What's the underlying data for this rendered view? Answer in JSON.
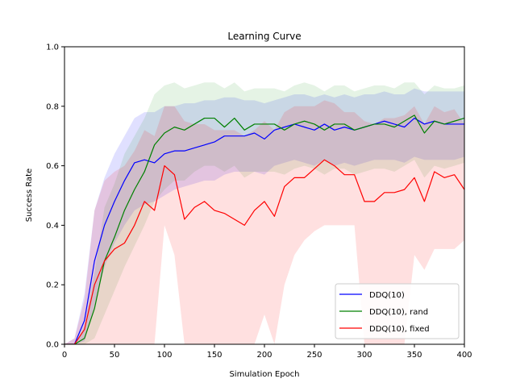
{
  "chart_data": {
    "type": "line",
    "title": "Learning Curve",
    "xlabel": "Simulation Epoch",
    "ylabel": "Success Rate",
    "xlim": [
      0,
      400
    ],
    "ylim": [
      0.0,
      1.0
    ],
    "xticks": [
      0,
      50,
      100,
      150,
      200,
      250,
      300,
      350,
      400
    ],
    "yticks": [
      "0.0",
      "0.2",
      "0.4",
      "0.6",
      "0.8",
      "1.0"
    ],
    "grid": false,
    "legend_position": "lower-right",
    "x": [
      0,
      10,
      20,
      30,
      40,
      50,
      60,
      70,
      80,
      90,
      100,
      110,
      120,
      130,
      140,
      150,
      160,
      170,
      180,
      190,
      200,
      210,
      220,
      230,
      240,
      250,
      260,
      270,
      280,
      290,
      300,
      310,
      320,
      330,
      340,
      350,
      360,
      370,
      380,
      390,
      400
    ],
    "series": [
      {
        "name": "DDQ(10)",
        "color": "#0000ff",
        "band_color": "#0000ff",
        "values": [
          0.0,
          0.0,
          0.08,
          0.28,
          0.4,
          0.48,
          0.55,
          0.61,
          0.62,
          0.61,
          0.64,
          0.65,
          0.65,
          0.66,
          0.67,
          0.68,
          0.7,
          0.7,
          0.7,
          0.71,
          0.69,
          0.72,
          0.73,
          0.74,
          0.73,
          0.72,
          0.74,
          0.72,
          0.73,
          0.72,
          0.73,
          0.74,
          0.75,
          0.74,
          0.73,
          0.76,
          0.74,
          0.75,
          0.74,
          0.74,
          0.74
        ],
        "lower": [
          0.0,
          0.0,
          0.01,
          0.13,
          0.26,
          0.34,
          0.4,
          0.45,
          0.47,
          0.48,
          0.5,
          0.52,
          0.53,
          0.54,
          0.55,
          0.55,
          0.57,
          0.58,
          0.58,
          0.58,
          0.57,
          0.6,
          0.61,
          0.62,
          0.61,
          0.6,
          0.62,
          0.6,
          0.61,
          0.6,
          0.61,
          0.62,
          0.62,
          0.62,
          0.61,
          0.63,
          0.62,
          0.62,
          0.62,
          0.62,
          0.63
        ],
        "upper": [
          0.0,
          0.02,
          0.17,
          0.45,
          0.56,
          0.64,
          0.7,
          0.76,
          0.78,
          0.78,
          0.8,
          0.8,
          0.81,
          0.81,
          0.82,
          0.82,
          0.83,
          0.83,
          0.82,
          0.82,
          0.81,
          0.82,
          0.83,
          0.84,
          0.84,
          0.83,
          0.84,
          0.83,
          0.84,
          0.83,
          0.84,
          0.84,
          0.85,
          0.84,
          0.84,
          0.86,
          0.85,
          0.85,
          0.85,
          0.85,
          0.85
        ]
      },
      {
        "name": "DDQ(10), rand",
        "color": "#008000",
        "band_color": "#2ca02c",
        "values": [
          0.0,
          0.0,
          0.02,
          0.12,
          0.28,
          0.36,
          0.45,
          0.52,
          0.58,
          0.67,
          0.71,
          0.73,
          0.72,
          0.74,
          0.76,
          0.76,
          0.73,
          0.76,
          0.72,
          0.74,
          0.74,
          0.74,
          0.72,
          0.74,
          0.75,
          0.74,
          0.72,
          0.74,
          0.74,
          0.72,
          0.73,
          0.74,
          0.74,
          0.73,
          0.75,
          0.77,
          0.71,
          0.75,
          0.74,
          0.75,
          0.76
        ],
        "lower": [
          0.0,
          0.0,
          0.0,
          0.02,
          0.1,
          0.18,
          0.26,
          0.33,
          0.4,
          0.48,
          0.52,
          0.55,
          0.55,
          0.58,
          0.6,
          0.6,
          0.58,
          0.6,
          0.56,
          0.58,
          0.58,
          0.58,
          0.57,
          0.59,
          0.6,
          0.59,
          0.57,
          0.59,
          0.59,
          0.57,
          0.58,
          0.59,
          0.59,
          0.58,
          0.6,
          0.62,
          0.56,
          0.6,
          0.59,
          0.6,
          0.61
        ],
        "upper": [
          0.0,
          0.0,
          0.06,
          0.24,
          0.46,
          0.54,
          0.64,
          0.7,
          0.76,
          0.84,
          0.87,
          0.88,
          0.86,
          0.87,
          0.88,
          0.88,
          0.86,
          0.88,
          0.85,
          0.86,
          0.86,
          0.86,
          0.85,
          0.87,
          0.88,
          0.87,
          0.85,
          0.87,
          0.87,
          0.85,
          0.86,
          0.87,
          0.87,
          0.86,
          0.88,
          0.88,
          0.84,
          0.87,
          0.86,
          0.86,
          0.87
        ]
      },
      {
        "name": "DDQ(10), fixed",
        "color": "#ff0000",
        "band_color": "#ff0000",
        "values": [
          0.0,
          0.0,
          0.05,
          0.2,
          0.28,
          0.32,
          0.34,
          0.4,
          0.48,
          0.45,
          0.6,
          0.57,
          0.42,
          0.46,
          0.48,
          0.45,
          0.44,
          0.42,
          0.4,
          0.45,
          0.48,
          0.43,
          0.53,
          0.56,
          0.56,
          0.59,
          0.62,
          0.6,
          0.57,
          0.57,
          0.48,
          0.48,
          0.51,
          0.51,
          0.52,
          0.56,
          0.48,
          0.58,
          0.56,
          0.57,
          0.52
        ],
        "lower": [
          0.0,
          0.0,
          0.0,
          0.0,
          0.0,
          0.0,
          0.0,
          0.0,
          0.0,
          0.0,
          0.4,
          0.3,
          0.0,
          0.0,
          0.0,
          0.0,
          0.0,
          0.0,
          0.0,
          0.0,
          0.1,
          0.0,
          0.2,
          0.3,
          0.35,
          0.38,
          0.4,
          0.4,
          0.4,
          0.4,
          0.0,
          0.0,
          0.0,
          0.0,
          0.0,
          0.3,
          0.25,
          0.32,
          0.32,
          0.32,
          0.35
        ],
        "upper": [
          0.0,
          0.02,
          0.15,
          0.45,
          0.55,
          0.58,
          0.6,
          0.65,
          0.72,
          0.7,
          0.8,
          0.8,
          0.75,
          0.74,
          0.74,
          0.72,
          0.72,
          0.72,
          0.7,
          0.72,
          0.75,
          0.72,
          0.78,
          0.8,
          0.8,
          0.8,
          0.82,
          0.81,
          0.78,
          0.78,
          0.75,
          0.74,
          0.76,
          0.76,
          0.77,
          0.8,
          0.74,
          0.8,
          0.78,
          0.79,
          0.74
        ]
      }
    ]
  }
}
